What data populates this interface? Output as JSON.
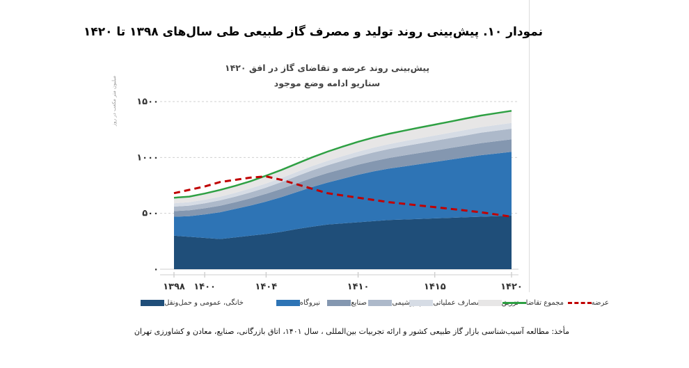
{
  "document_title": "نمودار ۱۰. پیش‌بینی روند تولید و مصرف گاز طبیعی طی سال‌های ۱۳۹۸ تا ۱۴۲۰",
  "source_note": "مأخذ: مطالعه آسیب‌شناسی بازار گاز طبیعی کشور و ارائه تجربیات بین‌المللی ، سال ۱۴۰۱، اتاق بازرگانی، صنایع، معادن و کشاورزی تهران",
  "chart_data": {
    "type": "area",
    "title": "پیش‌بینی روند عرضه و تقاضای گاز در افق ۱۴۲۰",
    "subtitle": "سناریو ادامه وضع موجود",
    "ylabel": "میلیون متر مکعب در روز",
    "xlabel": "",
    "x": [
      1398,
      1399,
      1400,
      1401,
      1402,
      1403,
      1404,
      1405,
      1406,
      1407,
      1408,
      1409,
      1410,
      1411,
      1412,
      1413,
      1414,
      1415,
      1416,
      1417,
      1418,
      1419,
      1420
    ],
    "x_ticks": [
      1398,
      1400,
      1404,
      1410,
      1415,
      1420
    ],
    "x_tick_labels": [
      "۱۳۹۸",
      "۱۴۰۰",
      "۱۴۰۴",
      "۱۴۱۰",
      "۱۴۱۵",
      "۱۴۲۰"
    ],
    "y_ticks": [
      0,
      500,
      1000,
      1500
    ],
    "y_tick_labels": [
      "۰",
      "۵۰۰",
      "۱۰۰۰",
      "۱۵۰۰"
    ],
    "ylim": [
      0,
      1500
    ],
    "grid": "horizontal-dashed",
    "legend_position": "bottom",
    "stacked_series": [
      {
        "name": "خانگی، عمومی و حمل‌ونقل",
        "color": "#1f4e79",
        "values": [
          300,
          290,
          280,
          270,
          285,
          300,
          315,
          335,
          360,
          380,
          400,
          410,
          420,
          430,
          440,
          445,
          450,
          455,
          460,
          465,
          470,
          475,
          480
        ]
      },
      {
        "name": "نیروگاه",
        "color": "#2e74b5",
        "values": [
          170,
          185,
          210,
          240,
          255,
          270,
          290,
          310,
          330,
          355,
          375,
          400,
          425,
          445,
          460,
          475,
          490,
          505,
          520,
          535,
          550,
          560,
          570
        ]
      },
      {
        "name": "صنایع",
        "color": "#8497b0",
        "values": [
          50,
          52,
          55,
          58,
          60,
          65,
          70,
          74,
          78,
          82,
          85,
          88,
          90,
          92,
          95,
          98,
          100,
          102,
          104,
          106,
          108,
          110,
          112
        ]
      },
      {
        "name": "پتروشیمی",
        "color": "#adb9ca",
        "values": [
          40,
          42,
          45,
          48,
          50,
          53,
          56,
          60,
          64,
          67,
          70,
          73,
          75,
          78,
          80,
          83,
          85,
          87,
          89,
          91,
          93,
          94,
          95
        ]
      },
      {
        "name": "مصارف عملیاتی",
        "color": "#d6dce5",
        "values": [
          30,
          31,
          32,
          33,
          34,
          35,
          36,
          37,
          38,
          39,
          40,
          41,
          42,
          43,
          44,
          45,
          46,
          47,
          48,
          49,
          50,
          51,
          52
        ]
      },
      {
        "name": "تزریق",
        "color": "#e7e6e6",
        "values": [
          50,
          50,
          55,
          60,
          62,
          65,
          70,
          72,
          75,
          78,
          82,
          85,
          88,
          90,
          92,
          94,
          96,
          98,
          100,
          102,
          104,
          106,
          108
        ]
      }
    ],
    "line_series": [
      {
        "name": "مجموع تقاضا",
        "color": "#2ea043",
        "style": "solid",
        "values": [
          640,
          650,
          677,
          709,
          746,
          788,
          837,
          888,
          945,
          1001,
          1052,
          1097,
          1140,
          1178,
          1211,
          1240,
          1267,
          1294,
          1321,
          1348,
          1375,
          1396,
          1417
        ]
      },
      {
        "name": "عرضه",
        "color": "#c00000",
        "style": "dashed",
        "values": [
          680,
          710,
          740,
          780,
          800,
          820,
          830,
          800,
          760,
          720,
          680,
          660,
          640,
          620,
          600,
          585,
          570,
          555,
          540,
          525,
          510,
          490,
          470
        ]
      }
    ],
    "legend": [
      {
        "label": "خانگی، عمومی و حمل‌ونقل",
        "kind": "area",
        "color": "#1f4e79"
      },
      {
        "label": "نیروگاه",
        "kind": "area",
        "color": "#2e74b5"
      },
      {
        "label": "صنایع",
        "kind": "area",
        "color": "#8497b0"
      },
      {
        "label": "پتروشیمی",
        "kind": "area",
        "color": "#adb9ca"
      },
      {
        "label": "مصارف عملیاتی",
        "kind": "area",
        "color": "#d6dce5"
      },
      {
        "label": "تزریق",
        "kind": "area",
        "color": "#e7e6e6"
      },
      {
        "label": "مجموع تقاضا",
        "kind": "line",
        "color": "#2ea043"
      },
      {
        "label": "عرضه",
        "kind": "dashed",
        "color": "#c00000"
      }
    ]
  }
}
